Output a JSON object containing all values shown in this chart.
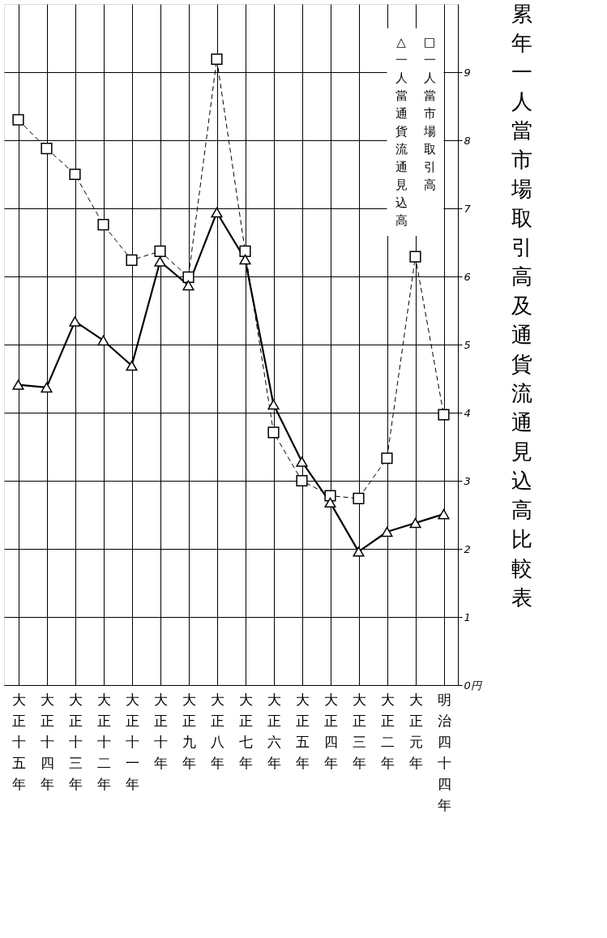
{
  "chart_data": {
    "type": "line",
    "title": "累年一人當市場取引高及通貨流通見込高比較表",
    "categories": [
      "大正十五年",
      "大正十四年",
      "大正十三年",
      "大正十二年",
      "大正十一年",
      "大正十年",
      "大正九年",
      "大正八年",
      "大正七年",
      "大正六年",
      "大正五年",
      "大正四年",
      "大正三年",
      "大正二年",
      "大正元年",
      "明治四十四年"
    ],
    "series": [
      {
        "name": "□一人當市場取引高",
        "color": "#000000",
        "marker": "square",
        "line_style": "dashed",
        "values": [
          8.3,
          7.88,
          7.5,
          6.76,
          6.24,
          6.37,
          5.99,
          9.19,
          6.37,
          3.71,
          3.0,
          2.78,
          2.74,
          3.33,
          6.29,
          3.97
        ]
      },
      {
        "name": "△一人當通貨流通見込高",
        "color": "#000000",
        "marker": "triangle",
        "line_style": "solid",
        "values": [
          4.41,
          4.37,
          5.34,
          5.06,
          4.69,
          6.22,
          5.87,
          6.94,
          6.25,
          4.12,
          3.28,
          2.68,
          1.96,
          2.25,
          2.38,
          2.51
        ]
      }
    ],
    "ylim": [
      0,
      10
    ],
    "yticks": [
      {
        "value": 0,
        "label": "0円"
      },
      1,
      2,
      3,
      4,
      5,
      6,
      7,
      8,
      9
    ],
    "grid": true
  }
}
